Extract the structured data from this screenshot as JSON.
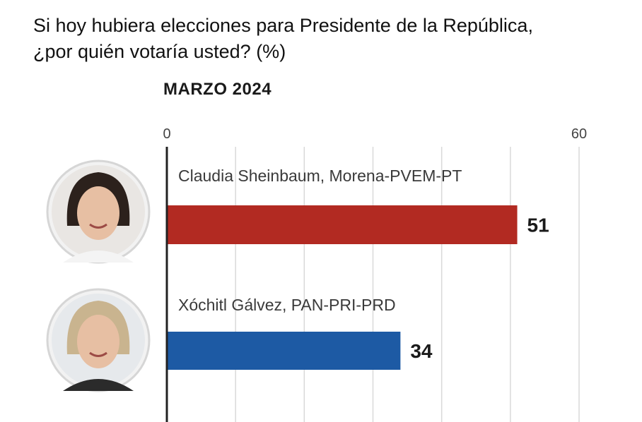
{
  "header": {
    "question_line1": "Si hoy hubiera elecciones para Presidente de la República,",
    "question_line2": "¿por quién votaría usted?  (%)",
    "period": "MARZO 2024"
  },
  "chart_data": {
    "type": "bar",
    "orientation": "horizontal",
    "xlim": [
      0,
      60
    ],
    "tick_labels": [
      "0",
      "60"
    ],
    "gridlines": [
      0,
      10,
      20,
      30,
      40,
      50,
      60
    ],
    "grid": true,
    "categories": [
      "Claudia Sheinbaum, Morena-PVEM-PT",
      "Xóchitl Gálvez, PAN-PRI-PRD"
    ],
    "values": [
      51,
      34
    ],
    "value_labels": [
      "51",
      "34"
    ],
    "colors": [
      "#b22a22",
      "#1d5aa4"
    ],
    "gridline_color": "#d9d9d9",
    "axis_color": "#222222",
    "avatar_icons": [
      "candidate-portrait-icon",
      "candidate-portrait-icon"
    ]
  }
}
